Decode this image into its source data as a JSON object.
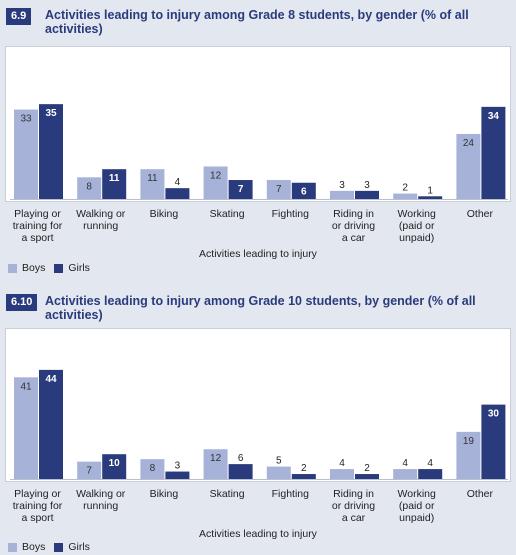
{
  "colors": {
    "boys": "#a6b2d8",
    "girls": "#2a3b7d",
    "header": "#2a3b7d",
    "background": "#e3e7ef"
  },
  "chart_data": [
    {
      "type": "bar",
      "number": "6.9",
      "title": "Activities leading to injury among Grade 8 students, by gender (% of all activities)",
      "categories": [
        "Playing or training for a sport",
        "Walking or running",
        "Biking",
        "Skating",
        "Fighting",
        "Riding in or driving a car",
        "Working (paid or unpaid)",
        "Other"
      ],
      "series": [
        {
          "name": "Boys",
          "values": [
            33,
            8,
            11,
            12,
            7,
            3,
            2,
            24
          ]
        },
        {
          "name": "Girls",
          "values": [
            35,
            11,
            4,
            7,
            6,
            3,
            1,
            34
          ]
        }
      ],
      "xlabel": "Activities leading to injury",
      "ylabel": "",
      "ylim": [
        0,
        35
      ],
      "grid": false,
      "legend": "bottom-left"
    },
    {
      "type": "bar",
      "number": "6.10",
      "title": "Activities leading to injury among Grade 10 students, by gender (% of all activities)",
      "categories": [
        "Playing or training for a sport",
        "Walking or running",
        "Biking",
        "Skating",
        "Fighting",
        "Riding in or driving a car",
        "Working (paid or unpaid)",
        "Other"
      ],
      "series": [
        {
          "name": "Boys",
          "values": [
            41,
            7,
            8,
            12,
            5,
            4,
            4,
            19
          ]
        },
        {
          "name": "Girls",
          "values": [
            44,
            10,
            3,
            6,
            2,
            2,
            4,
            30
          ]
        }
      ],
      "xlabel": "Activities leading to injury",
      "ylabel": "",
      "ylim": [
        0,
        44
      ],
      "grid": false,
      "legend": "bottom-left"
    }
  ]
}
